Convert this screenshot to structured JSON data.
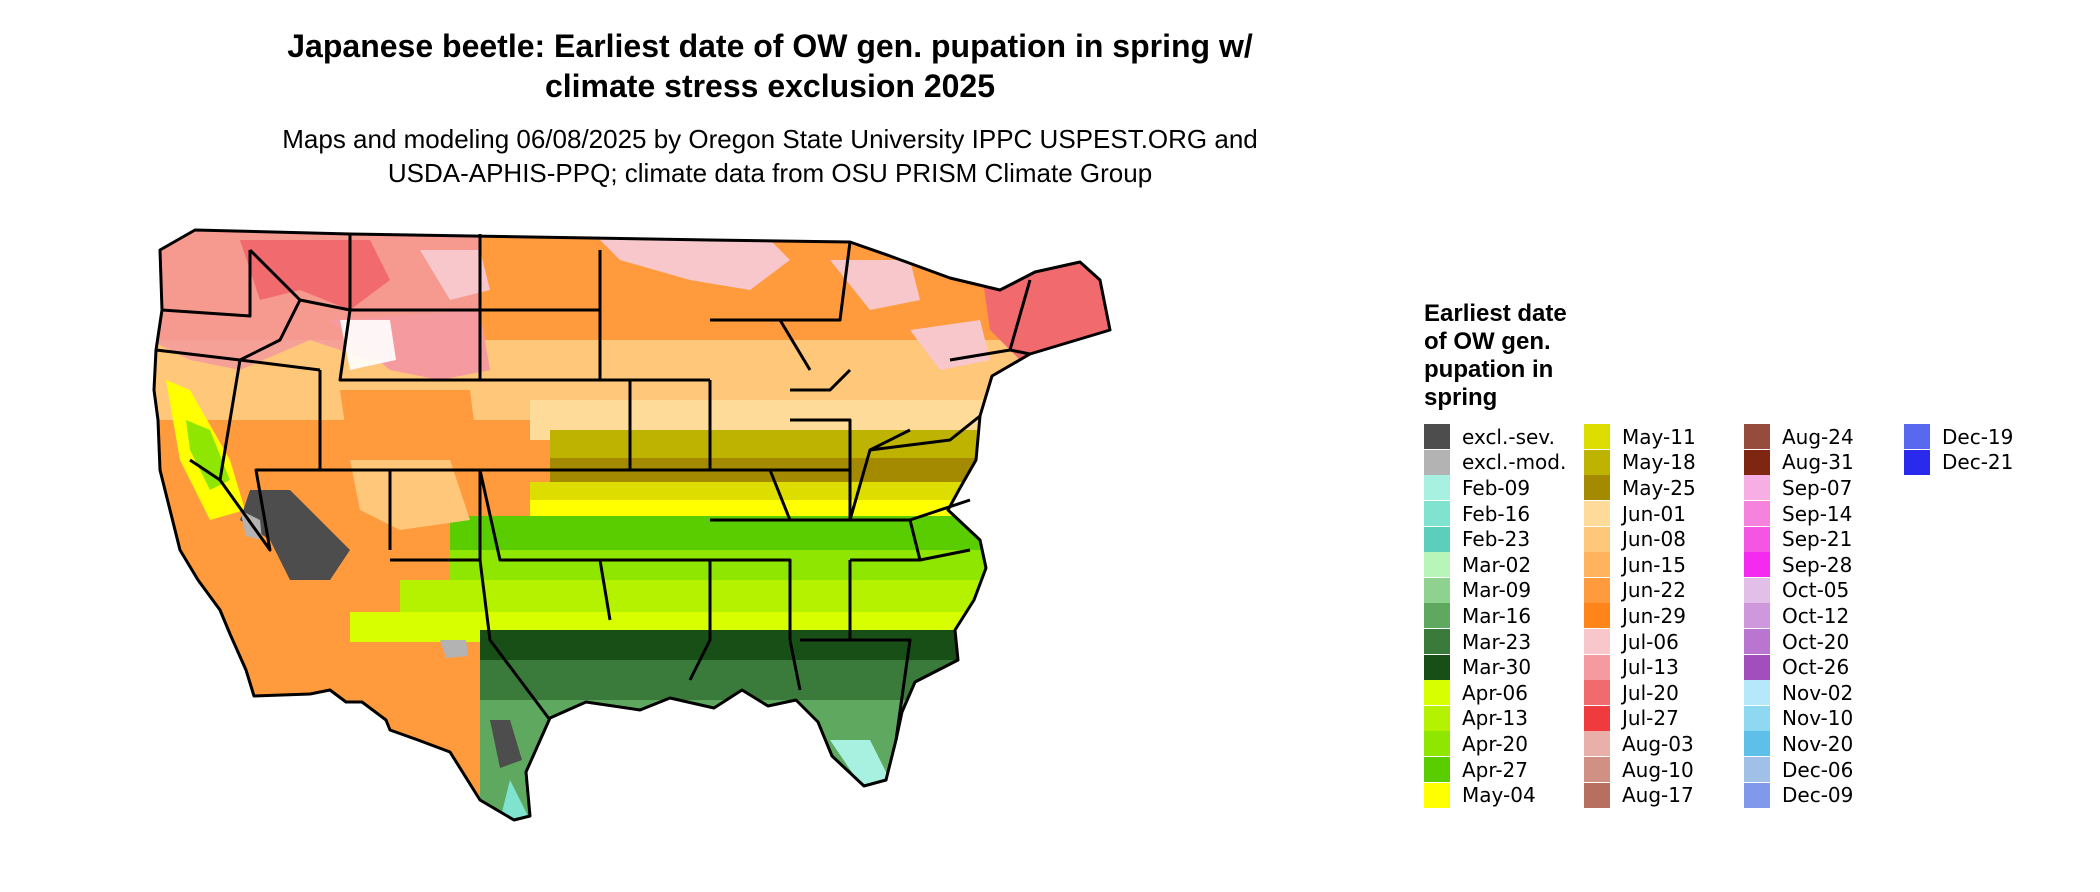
{
  "title_lines": [
    "Japanese beetle: Earliest date of OW gen. pupation in spring w/",
    "climate stress exclusion 2025"
  ],
  "subtitle_lines": [
    "Maps and modeling 06/08/2025 by Oregon State University IPPC USPEST.ORG and",
    "USDA-APHIS-PPQ; climate data from OSU PRISM Climate Group"
  ],
  "legend": {
    "title_lines": [
      "Earliest date",
      "of OW gen.",
      "pupation in",
      "spring"
    ],
    "items": [
      {
        "label": "excl.-sev.",
        "color": "#4d4d4d"
      },
      {
        "label": "excl.-mod.",
        "color": "#b3b3b3"
      },
      {
        "label": "Feb-09",
        "color": "#a8f0df"
      },
      {
        "label": "Feb-16",
        "color": "#7fe3cf"
      },
      {
        "label": "Feb-23",
        "color": "#5ccfbc"
      },
      {
        "label": "Mar-02",
        "color": "#b8f5b8"
      },
      {
        "label": "Mar-09",
        "color": "#8fd18f"
      },
      {
        "label": "Mar-16",
        "color": "#5fa85f"
      },
      {
        "label": "Mar-23",
        "color": "#3a7a3a"
      },
      {
        "label": "Mar-30",
        "color": "#174f17"
      },
      {
        "label": "Apr-06",
        "color": "#d7ff00"
      },
      {
        "label": "Apr-13",
        "color": "#b5f200"
      },
      {
        "label": "Apr-20",
        "color": "#8fe600"
      },
      {
        "label": "Apr-27",
        "color": "#5acd00"
      },
      {
        "label": "May-04",
        "color": "#ffff00"
      },
      {
        "label": "May-11",
        "color": "#dddd00"
      },
      {
        "label": "May-18",
        "color": "#bdb300"
      },
      {
        "label": "May-25",
        "color": "#a38a00"
      },
      {
        "label": "Jun-01",
        "color": "#ffdb99"
      },
      {
        "label": "Jun-08",
        "color": "#ffc77a"
      },
      {
        "label": "Jun-15",
        "color": "#ffb35c"
      },
      {
        "label": "Jun-22",
        "color": "#ff9a3d"
      },
      {
        "label": "Jun-29",
        "color": "#ff8419"
      },
      {
        "label": "Jul-06",
        "color": "#f7c7cb"
      },
      {
        "label": "Jul-13",
        "color": "#f59a9e"
      },
      {
        "label": "Jul-20",
        "color": "#f06a6e"
      },
      {
        "label": "Jul-27",
        "color": "#ef3a3e"
      },
      {
        "label": "Aug-03",
        "color": "#e8b0a8"
      },
      {
        "label": "Aug-10",
        "color": "#d09184"
      },
      {
        "label": "Aug-17",
        "color": "#b77060"
      },
      {
        "label": "Aug-24",
        "color": "#954c3c"
      },
      {
        "label": "Aug-31",
        "color": "#7f2612"
      },
      {
        "label": "Sep-07",
        "color": "#f7aee5"
      },
      {
        "label": "Sep-14",
        "color": "#f582dd"
      },
      {
        "label": "Sep-21",
        "color": "#f555e3"
      },
      {
        "label": "Sep-28",
        "color": "#f52af0"
      },
      {
        "label": "Oct-05",
        "color": "#e2bfe8"
      },
      {
        "label": "Oct-12",
        "color": "#cf98dc"
      },
      {
        "label": "Oct-20",
        "color": "#ba75d0"
      },
      {
        "label": "Oct-26",
        "color": "#a24fbd"
      },
      {
        "label": "Nov-02",
        "color": "#b5e8fa"
      },
      {
        "label": "Nov-10",
        "color": "#8fd8f2"
      },
      {
        "label": "Nov-20",
        "color": "#5ec0e8"
      },
      {
        "label": "Dec-06",
        "color": "#a0c0e8"
      },
      {
        "label": "Dec-09",
        "color": "#8099ea"
      },
      {
        "label": "Dec-19",
        "color": "#5969ef"
      },
      {
        "label": "Dec-21",
        "color": "#2a2aef"
      }
    ]
  }
}
